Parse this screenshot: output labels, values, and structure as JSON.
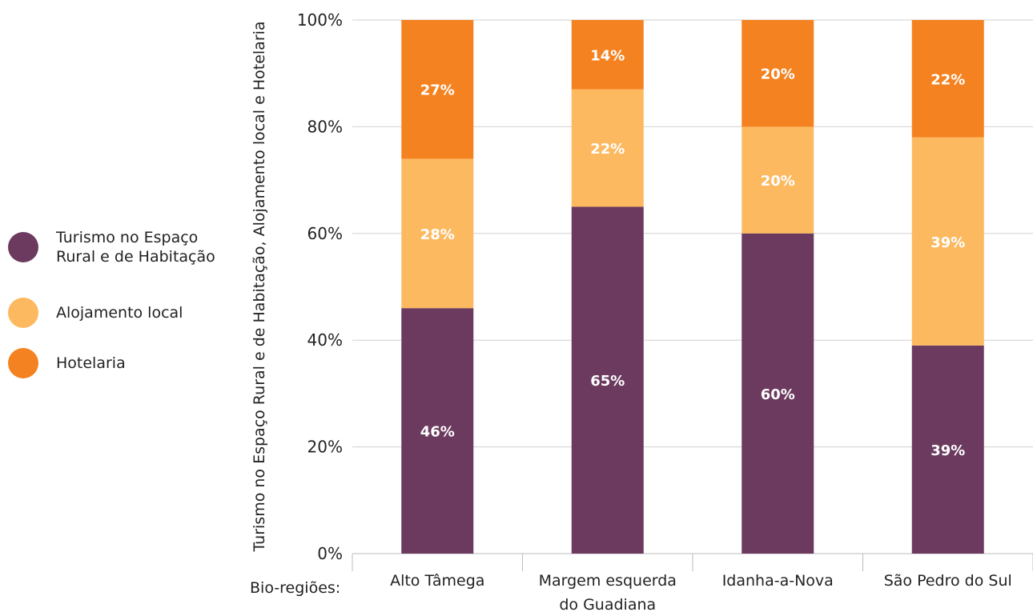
{
  "chart_data": {
    "type": "bar",
    "stacked": true,
    "categories": [
      "Alto Tâmega",
      "Margem esquerda\ndo Guadiana",
      "Idanha-a-Nova",
      "São Pedro do Sul"
    ],
    "series": [
      {
        "name": "Turismo no Espaço\nRural e de Habitação",
        "color": "#6b3a5e",
        "values": [
          46,
          65,
          60,
          39
        ]
      },
      {
        "name": "Alojamento local",
        "color": "#fcb960",
        "values": [
          28,
          22,
          20,
          39
        ]
      },
      {
        "name": "Hotelaria",
        "color": "#f58220",
        "values": [
          27,
          14,
          20,
          22
        ]
      }
    ],
    "data_labels": [
      [
        "46%",
        "65%",
        "60%",
        "39%"
      ],
      [
        "28%",
        "22%",
        "20%",
        "39%"
      ],
      [
        "27%",
        "14%",
        "20%",
        "22%"
      ]
    ],
    "yticks": [
      "0%",
      "20%",
      "40%",
      "60%",
      "80%",
      "100%"
    ],
    "ylim": [
      0,
      100
    ],
    "ylabel": "Turismo no Espaço Rural e de Habitação, Alojamento local e Hotelaria",
    "xlabel": "Bio-regiões:",
    "legend_position": "left",
    "grid": true
  }
}
